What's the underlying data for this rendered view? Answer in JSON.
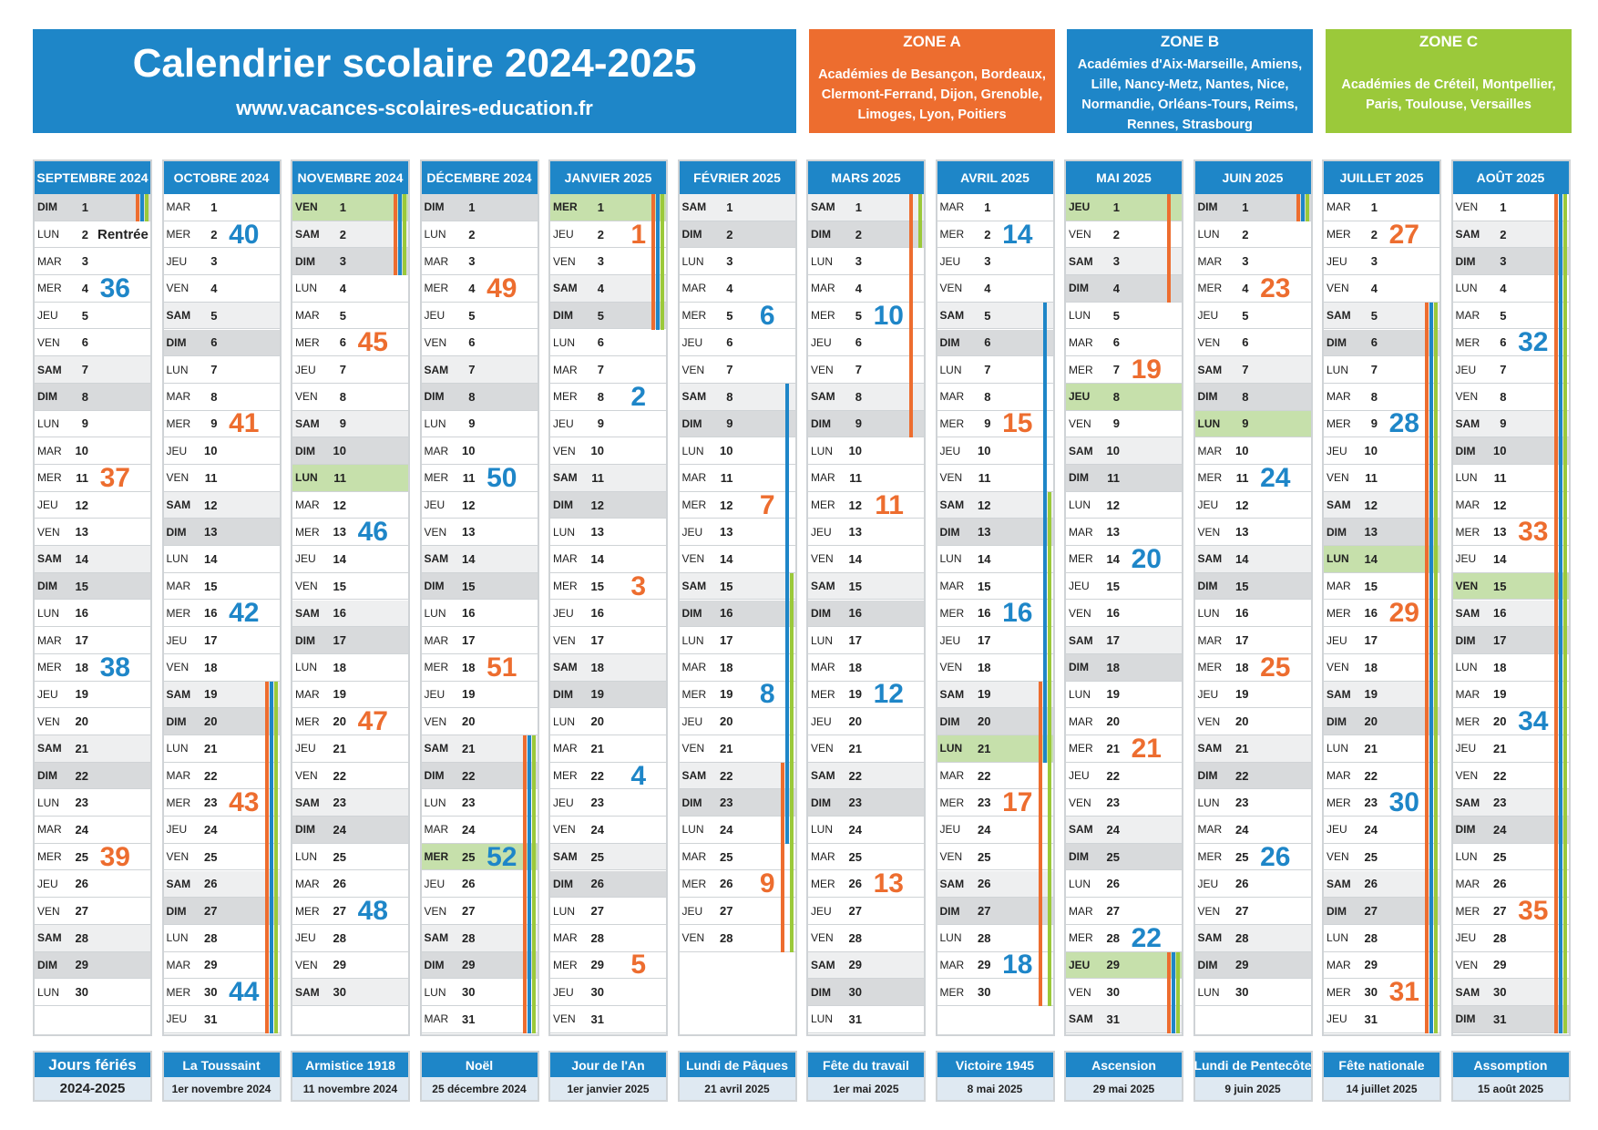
{
  "header": {
    "title": "Calendrier scolaire 2024-2025",
    "url": "www.vacances-scolaires-education.fr"
  },
  "zones": [
    {
      "name": "ZONE A",
      "academies": "Académies de Besançon, Bordeaux, Clermont-Ferrand, Dijon, Grenoble, Limoges, Lyon, Poitiers",
      "color": "#ed6d2f"
    },
    {
      "name": "ZONE B",
      "academies": "Académies d'Aix-Marseille, Amiens, Lille, Nancy-Metz, Nantes, Nice, Normandie, Orléans-Tours, Reims, Rennes, Strasbourg",
      "color": "#1e86c8"
    },
    {
      "name": "ZONE C",
      "academies": "Académies de Créteil, Montpellier, Paris, Toulouse, Versailles",
      "color": "#9bc93a"
    }
  ],
  "months": [
    {
      "name": "SEPTEMBRE 2024",
      "days": 30,
      "start": 6,
      "holidays": [],
      "notes": {
        "2": "Rentrée"
      },
      "weeks": [
        {
          "n": 36,
          "day": 4,
          "c": "blue"
        },
        {
          "n": 37,
          "day": 11,
          "c": "orange"
        },
        {
          "n": 38,
          "day": 18,
          "c": "blue"
        },
        {
          "n": 39,
          "day": 25,
          "c": "orange"
        }
      ],
      "bars": [
        {
          "z": "A",
          "from": 1,
          "to": 1
        },
        {
          "z": "B",
          "from": 1,
          "to": 1
        },
        {
          "z": "C",
          "from": 1,
          "to": 1
        }
      ]
    },
    {
      "name": "OCTOBRE 2024",
      "days": 31,
      "start": 1,
      "holidays": [],
      "notes": {},
      "weeks": [
        {
          "n": 40,
          "day": 2,
          "c": "blue"
        },
        {
          "n": 41,
          "day": 9,
          "c": "orange"
        },
        {
          "n": 42,
          "day": 16,
          "c": "blue"
        },
        {
          "n": 43,
          "day": 23,
          "c": "orange"
        },
        {
          "n": 44,
          "day": 30,
          "c": "blue"
        }
      ],
      "bars": [
        {
          "z": "A",
          "from": 19,
          "to": 31
        },
        {
          "z": "B",
          "from": 19,
          "to": 31
        },
        {
          "z": "C",
          "from": 19,
          "to": 31
        }
      ]
    },
    {
      "name": "NOVEMBRE 2024",
      "days": 30,
      "start": 4,
      "holidays": [
        1,
        11
      ],
      "notes": {},
      "weeks": [
        {
          "n": 45,
          "day": 6,
          "c": "orange"
        },
        {
          "n": 46,
          "day": 13,
          "c": "blue"
        },
        {
          "n": 47,
          "day": 20,
          "c": "orange"
        },
        {
          "n": 48,
          "day": 27,
          "c": "blue"
        }
      ],
      "bars": [
        {
          "z": "A",
          "from": 1,
          "to": 3
        },
        {
          "z": "B",
          "from": 1,
          "to": 3
        },
        {
          "z": "C",
          "from": 1,
          "to": 3
        }
      ]
    },
    {
      "name": "DÉCEMBRE 2024",
      "days": 31,
      "start": 6,
      "holidays": [
        25
      ],
      "notes": {},
      "weeks": [
        {
          "n": 49,
          "day": 4,
          "c": "orange"
        },
        {
          "n": 50,
          "day": 11,
          "c": "blue"
        },
        {
          "n": 51,
          "day": 18,
          "c": "orange"
        },
        {
          "n": 52,
          "day": 25,
          "c": "blue"
        }
      ],
      "bars": [
        {
          "z": "A",
          "from": 21,
          "to": 31
        },
        {
          "z": "B",
          "from": 21,
          "to": 31
        },
        {
          "z": "C",
          "from": 21,
          "to": 31
        }
      ]
    },
    {
      "name": "JANVIER 2025",
      "days": 31,
      "start": 2,
      "holidays": [
        1
      ],
      "notes": {},
      "weeks": [
        {
          "n": 1,
          "day": 2,
          "c": "orange"
        },
        {
          "n": 2,
          "day": 8,
          "c": "blue"
        },
        {
          "n": 3,
          "day": 15,
          "c": "orange"
        },
        {
          "n": 4,
          "day": 22,
          "c": "blue"
        },
        {
          "n": 5,
          "day": 29,
          "c": "orange"
        }
      ],
      "bars": [
        {
          "z": "A",
          "from": 1,
          "to": 5
        },
        {
          "z": "B",
          "from": 1,
          "to": 5
        },
        {
          "z": "C",
          "from": 1,
          "to": 5
        }
      ]
    },
    {
      "name": "FÉVRIER 2025",
      "days": 28,
      "start": 5,
      "holidays": [],
      "notes": {},
      "weeks": [
        {
          "n": 6,
          "day": 5,
          "c": "blue"
        },
        {
          "n": 7,
          "day": 12,
          "c": "orange"
        },
        {
          "n": 8,
          "day": 19,
          "c": "blue"
        },
        {
          "n": 9,
          "day": 26,
          "c": "orange"
        }
      ],
      "bars": [
        {
          "z": "A",
          "from": 22,
          "to": 28
        },
        {
          "z": "B",
          "from": 8,
          "to": 24
        },
        {
          "z": "C",
          "from": 15,
          "to": 28
        }
      ]
    },
    {
      "name": "MARS 2025",
      "days": 31,
      "start": 5,
      "holidays": [],
      "notes": {},
      "weeks": [
        {
          "n": 10,
          "day": 5,
          "c": "blue"
        },
        {
          "n": 11,
          "day": 12,
          "c": "orange"
        },
        {
          "n": 12,
          "day": 19,
          "c": "blue"
        },
        {
          "n": 13,
          "day": 26,
          "c": "orange"
        }
      ],
      "bars": [
        {
          "z": "A",
          "from": 1,
          "to": 9
        },
        {
          "z": "C",
          "from": 1,
          "to": 2
        }
      ]
    },
    {
      "name": "AVRIL 2025",
      "days": 30,
      "start": 1,
      "holidays": [
        21
      ],
      "notes": {},
      "weeks": [
        {
          "n": 14,
          "day": 2,
          "c": "blue"
        },
        {
          "n": 15,
          "day": 9,
          "c": "orange"
        },
        {
          "n": 16,
          "day": 16,
          "c": "blue"
        },
        {
          "n": 17,
          "day": 23,
          "c": "orange"
        },
        {
          "n": 18,
          "day": 29,
          "c": "blue"
        }
      ],
      "bars": [
        {
          "z": "A",
          "from": 19,
          "to": 30
        },
        {
          "z": "B",
          "from": 5,
          "to": 21
        },
        {
          "z": "C",
          "from": 12,
          "to": 30
        }
      ]
    },
    {
      "name": "MAI 2025",
      "days": 31,
      "start": 3,
      "holidays": [
        1,
        8,
        29
      ],
      "notes": {},
      "weeks": [
        {
          "n": 19,
          "day": 7,
          "c": "orange"
        },
        {
          "n": 20,
          "day": 14,
          "c": "blue"
        },
        {
          "n": 21,
          "day": 21,
          "c": "orange"
        },
        {
          "n": 22,
          "day": 28,
          "c": "blue"
        }
      ],
      "bars": [
        {
          "z": "A",
          "from": 1,
          "to": 4
        },
        {
          "z": "A",
          "from": 29,
          "to": 31
        },
        {
          "z": "B",
          "from": 29,
          "to": 31
        },
        {
          "z": "C",
          "from": 29,
          "to": 31
        }
      ]
    },
    {
      "name": "JUIN 2025",
      "days": 30,
      "start": 6,
      "holidays": [
        9
      ],
      "notes": {},
      "weeks": [
        {
          "n": 23,
          "day": 4,
          "c": "orange"
        },
        {
          "n": 24,
          "day": 11,
          "c": "blue"
        },
        {
          "n": 25,
          "day": 18,
          "c": "orange"
        },
        {
          "n": 26,
          "day": 25,
          "c": "blue"
        }
      ],
      "bars": [
        {
          "z": "A",
          "from": 1,
          "to": 1
        },
        {
          "z": "B",
          "from": 1,
          "to": 1
        },
        {
          "z": "C",
          "from": 1,
          "to": 1
        }
      ]
    },
    {
      "name": "JUILLET 2025",
      "days": 31,
      "start": 1,
      "holidays": [
        14
      ],
      "notes": {},
      "weeks": [
        {
          "n": 27,
          "day": 2,
          "c": "orange"
        },
        {
          "n": 28,
          "day": 9,
          "c": "blue"
        },
        {
          "n": 29,
          "day": 16,
          "c": "orange"
        },
        {
          "n": 30,
          "day": 23,
          "c": "blue"
        },
        {
          "n": 31,
          "day": 30,
          "c": "orange"
        }
      ],
      "bars": [
        {
          "z": "A",
          "from": 5,
          "to": 31
        },
        {
          "z": "B",
          "from": 5,
          "to": 31
        },
        {
          "z": "C",
          "from": 5,
          "to": 31
        }
      ]
    },
    {
      "name": "AOÛT 2025",
      "days": 31,
      "start": 4,
      "holidays": [
        15
      ],
      "notes": {},
      "weeks": [
        {
          "n": 32,
          "day": 6,
          "c": "blue"
        },
        {
          "n": 33,
          "day": 13,
          "c": "orange"
        },
        {
          "n": 34,
          "day": 20,
          "c": "blue"
        },
        {
          "n": 35,
          "day": 27,
          "c": "orange"
        }
      ],
      "bars": [
        {
          "z": "A",
          "from": 1,
          "to": 31
        },
        {
          "z": "B",
          "from": 1,
          "to": 31
        },
        {
          "z": "C",
          "from": 1,
          "to": 31
        }
      ]
    }
  ],
  "day_abbr": [
    "LUN",
    "MAR",
    "MER",
    "JEU",
    "VEN",
    "SAM",
    "DIM"
  ],
  "holidays_title": {
    "line1": "Jours fériés",
    "line2": "2024-2025"
  },
  "holidays": [
    {
      "name": "La Toussaint",
      "date": "1er novembre 2024"
    },
    {
      "name": "Armistice 1918",
      "date": "11 novembre 2024"
    },
    {
      "name": "Noël",
      "date": "25 décembre 2024"
    },
    {
      "name": "Jour de l'An",
      "date": "1er janvier 2025"
    },
    {
      "name": "Lundi de Pâques",
      "date": "21 avril 2025"
    },
    {
      "name": "Fête du travail",
      "date": "1er mai 2025"
    },
    {
      "name": "Victoire 1945",
      "date": "8 mai 2025"
    },
    {
      "name": "Ascension",
      "date": "29 mai 2025"
    },
    {
      "name": "Lundi de Pentecôte",
      "date": "9 juin 2025"
    },
    {
      "name": "Fête nationale",
      "date": "14 juillet 2025"
    },
    {
      "name": "Assomption",
      "date": "15 août 2025"
    }
  ]
}
